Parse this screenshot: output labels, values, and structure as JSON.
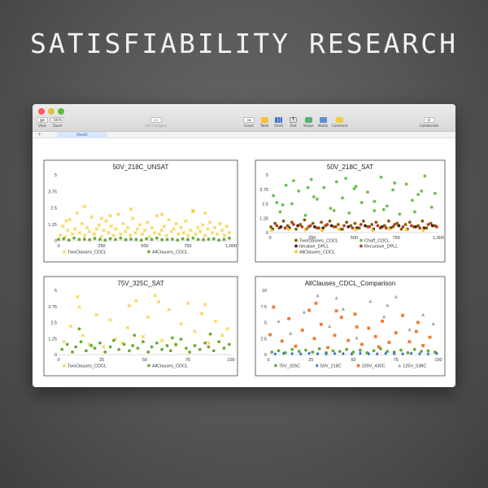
{
  "page": {
    "headline": "SATISFIABILITY RESEARCH"
  },
  "toolbar": {
    "view_label": "View",
    "zoom_value": "100%",
    "zoom_label": "Zoom",
    "add_category_label": "Add Category",
    "insert_label": "Insert",
    "table_label": "Table",
    "chart_label": "Chart",
    "text_label": "Text",
    "shape_label": "Shape",
    "media_label": "Media",
    "comment_label": "Comment",
    "collaborate_label": "Collaborate"
  },
  "tabs": {
    "add_icon": "+",
    "active_sheet": "Sheet1"
  },
  "colors": {
    "gold": "#F5C518",
    "green": "#6AAB36",
    "brown": "#8A5A00",
    "lime": "#6CC04A",
    "orange": "#EE7B30",
    "blue": "#3E74C9",
    "gray": "#A5A5A5"
  },
  "chart_data": [
    {
      "type": "scatter",
      "title": "50V_218C_UNSAT",
      "xlim": [
        0,
        1000
      ],
      "ylim": [
        0,
        5
      ],
      "xticks": [
        "0",
        "250",
        "500",
        "750",
        "1,000"
      ],
      "yticks": [
        "0",
        "1.25",
        "2.5",
        "3.75",
        "5"
      ],
      "series": [
        {
          "name": "TwoClauses_CDCL",
          "marker": "x",
          "color": "#F5C518",
          "x": [
            10,
            25,
            38,
            52,
            66,
            80,
            95,
            108,
            122,
            136,
            150,
            165,
            178,
            192,
            206,
            220,
            235,
            248,
            262,
            276,
            290,
            305,
            318,
            332,
            346,
            360,
            375,
            388,
            402,
            416,
            430,
            445,
            458,
            472,
            486,
            500,
            515,
            528,
            542,
            556,
            570,
            585,
            598,
            612,
            626,
            640,
            655,
            668,
            682,
            696,
            710,
            725,
            738,
            752,
            766,
            780,
            795,
            808,
            822,
            836,
            850,
            865,
            878,
            892,
            906,
            920,
            935,
            948,
            962,
            976,
            990,
            150,
            420,
            780,
            300,
            600,
            850,
            45,
            250
          ],
          "y": [
            0.4,
            1.1,
            0.3,
            0.8,
            1.6,
            0.5,
            0.9,
            2.1,
            0.6,
            1.3,
            0.4,
            1.0,
            0.7,
            1.8,
            0.5,
            0.9,
            1.2,
            0.3,
            0.8,
            1.5,
            0.6,
            1.1,
            0.4,
            0.9,
            2.0,
            0.5,
            1.3,
            0.7,
            1.0,
            0.4,
            1.7,
            0.6,
            0.9,
            1.2,
            0.5,
            0.8,
            1.4,
            0.3,
            1.0,
            0.6,
            1.9,
            0.5,
            0.8,
            1.1,
            0.4,
            1.6,
            0.7,
            0.9,
            1.3,
            0.5,
            1.0,
            0.6,
            1.5,
            0.4,
            0.8,
            2.2,
            0.5,
            1.0,
            0.7,
            1.2,
            0.4,
            0.9,
            1.4,
            0.6,
            1.0,
            0.5,
            1.3,
            0.8,
            0.4,
            1.1,
            0.6,
            2.6,
            2.4,
            2.3,
            1.9,
            2.0,
            2.1,
            1.5,
            1.7
          ]
        },
        {
          "name": "AllClauses_CDCL",
          "marker": "circle",
          "color": "#6AAB36",
          "x": [
            0,
            30,
            60,
            90,
            120,
            150,
            180,
            210,
            240,
            270,
            300,
            330,
            360,
            390,
            420,
            450,
            480,
            510,
            540,
            570,
            600,
            630,
            660,
            690,
            720,
            750,
            780,
            810,
            840,
            870,
            900,
            930,
            960,
            990
          ],
          "y": [
            0.1,
            0.15,
            0.05,
            0.2,
            0.1,
            0.12,
            0.08,
            0.18,
            0.1,
            0.05,
            0.15,
            0.1,
            0.2,
            0.08,
            0.12,
            0.1,
            0.05,
            0.15,
            0.1,
            0.2,
            0.08,
            0.1,
            0.12,
            0.05,
            0.15,
            0.1,
            0.2,
            0.1,
            0.08,
            0.12,
            0.15,
            0.05,
            0.1,
            0.2
          ]
        }
      ]
    },
    {
      "type": "scatter",
      "title": "50V_218C_SAT",
      "xlim": [
        0,
        1000
      ],
      "ylim": [
        0,
        5
      ],
      "xticks": [
        "0",
        "250",
        "500",
        "750",
        "1,000"
      ],
      "yticks": [
        "0",
        "1.25",
        "2.5",
        "3.75",
        "5"
      ],
      "series": [
        {
          "name": "TwoClauses_CDCL",
          "marker": "circle",
          "color": "#8A5A00",
          "x": [
            5,
            30,
            55,
            80,
            105,
            130,
            155,
            180,
            205,
            230,
            255,
            280,
            305,
            330,
            355,
            380,
            405,
            430,
            455,
            480,
            505,
            530,
            555,
            580,
            605,
            630,
            655,
            680,
            705,
            730,
            755,
            780,
            805,
            830,
            855,
            880,
            905,
            930,
            955,
            980
          ],
          "y": [
            0.5,
            0.8,
            0.4,
            1.0,
            0.6,
            0.9,
            0.3,
            0.7,
            1.1,
            0.5,
            0.8,
            0.4,
            0.9,
            0.6,
            1.0,
            0.5,
            0.7,
            0.3,
            0.9,
            0.6,
            0.8,
            0.4,
            1.0,
            0.5,
            0.7,
            0.9,
            0.4,
            0.6,
            1.0,
            0.5,
            0.8,
            0.3,
            0.7,
            0.9,
            0.5,
            0.6,
            1.0,
            0.4,
            0.8,
            0.6
          ]
        },
        {
          "name": "Chaff_CDCL",
          "marker": "circle",
          "color": "#6CC04A",
          "x": [
            20,
            60,
            95,
            130,
            170,
            210,
            245,
            280,
            320,
            360,
            395,
            430,
            470,
            510,
            545,
            580,
            620,
            660,
            695,
            730,
            770,
            810,
            845,
            880,
            920,
            960,
            40,
            140,
            260,
            380,
            500,
            620,
            740,
            860,
            980,
            75,
            225,
            450,
            675,
            900
          ],
          "y": [
            3.2,
            1.8,
            4.1,
            2.5,
            3.6,
            1.5,
            4.6,
            2.9,
            3.9,
            2.1,
            4.4,
            3.0,
            1.7,
            4.0,
            2.6,
            3.5,
            1.9,
            4.8,
            2.3,
            3.7,
            1.6,
            4.2,
            2.8,
            3.3,
            4.9,
            2.2,
            2.6,
            4.5,
            3.1,
            1.9,
            3.8,
            2.7,
            4.3,
            1.8,
            3.4,
            2.4,
            3.9,
            4.7,
            2.0,
            3.6
          ]
        },
        {
          "name": "Iterative_DPLL",
          "marker": "circle",
          "color": "#3B2A0A",
          "x": [
            15,
            65,
            115,
            165,
            215,
            265,
            315,
            365,
            415,
            465,
            515,
            565,
            615,
            665,
            715,
            765,
            815,
            865,
            915,
            965
          ],
          "y": [
            0.3,
            0.5,
            0.4,
            0.6,
            0.3,
            0.5,
            0.4,
            0.6,
            0.3,
            0.5,
            0.4,
            0.6,
            0.3,
            0.5,
            0.4,
            0.6,
            0.3,
            0.5,
            0.4,
            0.6
          ]
        },
        {
          "name": "Recursive_DPLL",
          "marker": "circle",
          "color": "#C0392B",
          "x": [
            40,
            90,
            140,
            190,
            240,
            290,
            340,
            390,
            440,
            490,
            540,
            590,
            640,
            690,
            740,
            790,
            840,
            890,
            940,
            990
          ],
          "y": [
            0.6,
            0.4,
            0.7,
            0.5,
            0.6,
            0.4,
            0.7,
            0.5,
            0.6,
            0.4,
            0.7,
            0.5,
            0.6,
            0.4,
            0.7,
            0.5,
            0.6,
            0.4,
            0.7,
            0.5
          ]
        },
        {
          "name": "AllClauses_CDCL",
          "marker": "circle",
          "color": "#F5C518",
          "x": [
            10,
            110,
            210,
            310,
            410,
            510,
            610,
            710,
            810,
            910
          ],
          "y": [
            0.2,
            0.3,
            0.25,
            0.2,
            0.3,
            0.25,
            0.2,
            0.3,
            0.25,
            0.2
          ]
        }
      ]
    },
    {
      "type": "scatter",
      "title": "75V_325C_SAT",
      "xlim": [
        0,
        100
      ],
      "ylim": [
        0,
        5
      ],
      "xticks": [
        "0",
        "25",
        "50",
        "75",
        "100"
      ],
      "yticks": [
        "0",
        "1.25",
        "2.5",
        "3.75",
        "5"
      ],
      "series": [
        {
          "name": "TwoClauses_CDCL",
          "marker": "x",
          "color": "#F5C518",
          "x": [
            3,
            7,
            11,
            14,
            18,
            22,
            26,
            30,
            33,
            37,
            41,
            45,
            49,
            52,
            56,
            60,
            64,
            68,
            71,
            75,
            79,
            83,
            87,
            91,
            95,
            98,
            12,
            40,
            58,
            85
          ],
          "y": [
            1.0,
            2.2,
            4.5,
            1.5,
            0.8,
            3.1,
            0.6,
            2.7,
            1.2,
            0.9,
            3.8,
            4.2,
            1.4,
            2.9,
            4.6,
            1.1,
            3.5,
            0.7,
            2.4,
            4.0,
            1.8,
            3.2,
            0.9,
            2.6,
            1.5,
            2.0,
            3.7,
            2.1,
            4.1,
            3.9
          ]
        },
        {
          "name": "AllClauses_CDCL",
          "marker": "circle",
          "color": "#6AAB36",
          "x": [
            2,
            5,
            8,
            10,
            13,
            16,
            19,
            21,
            24,
            27,
            30,
            32,
            35,
            38,
            41,
            43,
            46,
            49,
            52,
            54,
            57,
            60,
            63,
            65,
            68,
            71,
            74,
            76,
            79,
            82,
            85,
            87,
            90,
            93,
            96,
            99,
            12,
            44,
            66,
            88
          ],
          "y": [
            0.4,
            0.8,
            0.2,
            0.6,
            1.0,
            0.3,
            0.7,
            0.5,
            0.9,
            0.2,
            0.6,
            1.1,
            0.4,
            0.8,
            0.3,
            0.7,
            0.5,
            1.0,
            0.2,
            0.6,
            0.9,
            0.4,
            0.7,
            0.3,
            0.8,
            1.2,
            0.5,
            0.2,
            0.7,
            0.4,
            0.9,
            0.6,
            0.3,
            1.0,
            0.5,
            0.8,
            2.0,
            1.5,
            1.3,
            1.6
          ]
        }
      ]
    },
    {
      "type": "scatter",
      "title": "AllClauses_CDCL_Comparison",
      "xlim": [
        0,
        100
      ],
      "ylim": [
        0,
        10
      ],
      "xticks": [
        "0",
        "25",
        "50",
        "75",
        "100"
      ],
      "yticks": [
        "0",
        "2.5",
        "5",
        "7.5",
        "10"
      ],
      "series": [
        {
          "name": "75V_325C",
          "marker": "circle",
          "color": "#6AAB36",
          "x": [
            2,
            6,
            10,
            14,
            18,
            22,
            26,
            30,
            34,
            38,
            42,
            46,
            50,
            54,
            58,
            62,
            66,
            70,
            74,
            78,
            82,
            86,
            90,
            94,
            98
          ],
          "y": [
            0.4,
            0.6,
            0.3,
            0.8,
            0.5,
            0.7,
            0.4,
            0.9,
            0.3,
            0.6,
            0.5,
            0.8,
            0.4,
            0.7,
            0.3,
            0.6,
            0.9,
            0.5,
            0.4,
            0.7,
            0.3,
            0.8,
            0.5,
            0.6,
            0.4
          ]
        },
        {
          "name": "50V_218C",
          "marker": "diamond",
          "color": "#3E74C9",
          "x": [
            4,
            9,
            14,
            19,
            24,
            29,
            34,
            39,
            44,
            49,
            54,
            59,
            64,
            69,
            74,
            79,
            84,
            89,
            94,
            99
          ],
          "y": [
            0.1,
            0.2,
            0.15,
            0.1,
            0.2,
            0.12,
            0.1,
            0.18,
            0.15,
            0.1,
            0.2,
            0.12,
            0.1,
            0.18,
            0.15,
            0.1,
            0.2,
            0.12,
            0.1,
            0.18
          ]
        },
        {
          "name": "100V_430C",
          "marker": "square",
          "color": "#EE7B30",
          "x": [
            3,
            8,
            12,
            16,
            20,
            24,
            27,
            31,
            35,
            39,
            43,
            47,
            51,
            55,
            59,
            63,
            67,
            71,
            75,
            79,
            83,
            87,
            91,
            95,
            1,
            28,
            40,
            52,
            65,
            88
          ],
          "y": [
            7.4,
            2.1,
            5.6,
            1.3,
            3.8,
            6.9,
            2.5,
            4.7,
            1.1,
            3.0,
            5.8,
            2.2,
            6.3,
            1.6,
            4.1,
            2.8,
            5.2,
            1.9,
            3.4,
            6.1,
            2.0,
            3.6,
            1.4,
            2.7,
            3.1,
            8.0,
            6.8,
            4.3,
            1.2,
            5.0
          ]
        },
        {
          "name": "125V_538C",
          "marker": "triangle",
          "color": "#A5A5A5",
          "x": [
            6,
            13,
            21,
            29,
            36,
            44,
            52,
            60,
            68,
            75,
            83,
            91,
            97,
            40,
            70
          ],
          "y": [
            5.2,
            3.3,
            6.6,
            9.2,
            4.4,
            7.1,
            2.6,
            8.3,
            5.9,
            9.0,
            3.9,
            6.2,
            4.8,
            8.8,
            7.7
          ]
        }
      ]
    }
  ]
}
